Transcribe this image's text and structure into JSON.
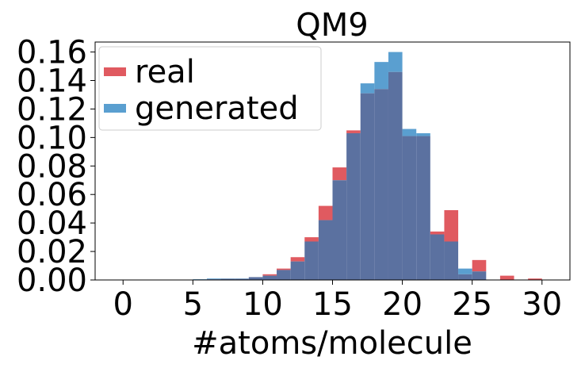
{
  "chart_data": {
    "type": "bar",
    "title": "QM9",
    "xlabel": "#atoms/molecule",
    "ylabel": "",
    "xlim": [
      -2,
      32
    ],
    "ylim": [
      0,
      0.167
    ],
    "xticks": [
      "0",
      "5",
      "10",
      "15",
      "20",
      "25",
      "30"
    ],
    "yticks": [
      "0.00",
      "0.02",
      "0.04",
      "0.06",
      "0.08",
      "0.10",
      "0.12",
      "0.14",
      "0.16"
    ],
    "bin_width": 1,
    "bin_starts": [
      5,
      6,
      7,
      8,
      9,
      10,
      11,
      12,
      13,
      14,
      15,
      16,
      17,
      18,
      19,
      20,
      21,
      22,
      23,
      24,
      25,
      26,
      27,
      28,
      29
    ],
    "grid": false,
    "legend_position": "top-left",
    "series": [
      {
        "name": "real",
        "color": "#e05a60",
        "values": [
          0.0,
          0.0005,
          0.0008,
          0.0008,
          0.002,
          0.004,
          0.008,
          0.016,
          0.03,
          0.052,
          0.079,
          0.105,
          0.131,
          0.134,
          0.146,
          0.101,
          0.101,
          0.034,
          0.049,
          0.004,
          0.014,
          0.0,
          0.003,
          0.0,
          0.001
        ]
      },
      {
        "name": "generated",
        "color": "#5a9fd0",
        "values": [
          0.0005,
          0.001,
          0.001,
          0.001,
          0.002,
          0.003,
          0.007,
          0.013,
          0.027,
          0.042,
          0.07,
          0.103,
          0.138,
          0.153,
          0.16,
          0.106,
          0.103,
          0.032,
          0.027,
          0.008,
          0.006,
          0.0,
          0.0,
          0.0,
          0.0
        ]
      }
    ],
    "overlap_color": "#5b71a0"
  }
}
